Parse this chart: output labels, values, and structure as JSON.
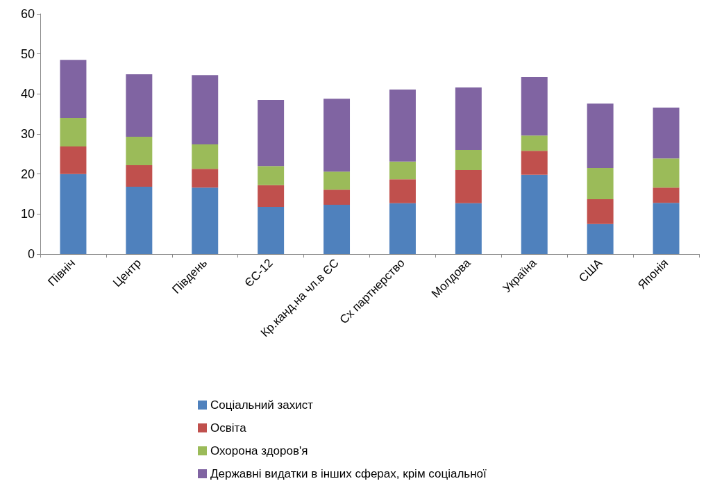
{
  "chart_data": {
    "type": "bar",
    "stacked": true,
    "categories": [
      "Північ",
      "Центр",
      "Південь",
      "ЄС-12",
      "Кр.канд.на чл.в ЄС",
      "Сх партнерство",
      "Молдова",
      "Україна",
      "США",
      "Японія"
    ],
    "series": [
      {
        "name": "Соціальний захист",
        "color": "#4f81bd",
        "values": [
          20,
          16.8,
          16.6,
          11.8,
          12.3,
          12.7,
          12.7,
          19.8,
          7.5,
          12.8
        ]
      },
      {
        "name": "Освіта",
        "color": "#c0504d",
        "values": [
          6.9,
          5.4,
          4.7,
          5.4,
          3.8,
          6.0,
          8.3,
          6.0,
          6.2,
          3.8
        ]
      },
      {
        "name": "Охорона здоров'я",
        "color": "#9bbb59",
        "values": [
          7.1,
          7.1,
          6.1,
          4.8,
          4.5,
          4.4,
          5.0,
          3.8,
          7.8,
          7.3
        ]
      },
      {
        "name": "Державні видатки в інших сферах, крім соціальної",
        "color": "#8064a2",
        "values": [
          14.5,
          15.6,
          17.3,
          16.5,
          18.2,
          18.0,
          15.6,
          14.6,
          16.1,
          12.7
        ]
      }
    ],
    "ylim": [
      0,
      60
    ],
    "yticks": [
      0,
      10,
      20,
      30,
      40,
      50,
      60
    ],
    "grid": false,
    "legend": "bottom"
  }
}
